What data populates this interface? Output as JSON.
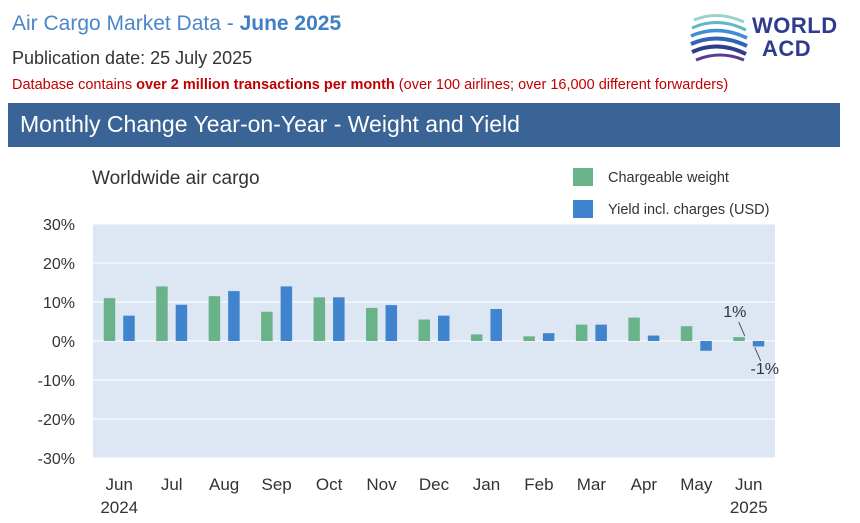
{
  "header": {
    "title_prefix": "Air Cargo Market Data -",
    "title_month": "June 2025",
    "publication_date": "Publication date: 25 July 2025",
    "db_note_pre": "Database contains ",
    "db_note_bold": "over 2 million transactions per month",
    "db_note_post": "  (over 100 airlines; over 16,000 different forwarders)"
  },
  "logo": {
    "line1": "WORLD",
    "line2": "ACD",
    "icon": "worldacd-swoosh-logo"
  },
  "section_title": "Monthly Change Year-on-Year - Weight and Yield",
  "colors": {
    "weight": "#6ab38a",
    "yield": "#3f84cc",
    "plot_bg": "#dde7f4",
    "grid": "#ffffff",
    "section_bar": "#3a6496"
  },
  "chart_data": {
    "type": "bar",
    "title": "Worldwide air cargo",
    "categories": [
      "Jun",
      "Jul",
      "Aug",
      "Sep",
      "Oct",
      "Nov",
      "Dec",
      "Jan",
      "Feb",
      "Mar",
      "Apr",
      "May",
      "Jun"
    ],
    "year_labels": [
      {
        "index": 0,
        "label": "2024"
      },
      {
        "index": 12,
        "label": "2025"
      }
    ],
    "series": [
      {
        "name": "Chargeable weight",
        "values": [
          11,
          14,
          11.5,
          7.5,
          11.2,
          8.5,
          5.5,
          1.7,
          1.2,
          4.2,
          6,
          3.8,
          1
        ]
      },
      {
        "name": "Yield incl. charges (USD)",
        "values": [
          6.5,
          9.3,
          12.8,
          14,
          11.2,
          9.2,
          6.5,
          8.2,
          2,
          4.2,
          1.4,
          -2.5,
          -1.4
        ]
      }
    ],
    "ylim": [
      -30,
      30
    ],
    "yticks": [
      30,
      20,
      10,
      0,
      -10,
      -20,
      -30
    ],
    "ytick_labels": [
      "30%",
      "20%",
      "10%",
      "0%",
      "-10%",
      "-20%",
      "-30%"
    ],
    "annotations": [
      {
        "index": 12,
        "series": 0,
        "text": "1%"
      },
      {
        "index": 12,
        "series": 1,
        "text": "-1%"
      }
    ],
    "grid": true,
    "legend_position": "top-right"
  }
}
